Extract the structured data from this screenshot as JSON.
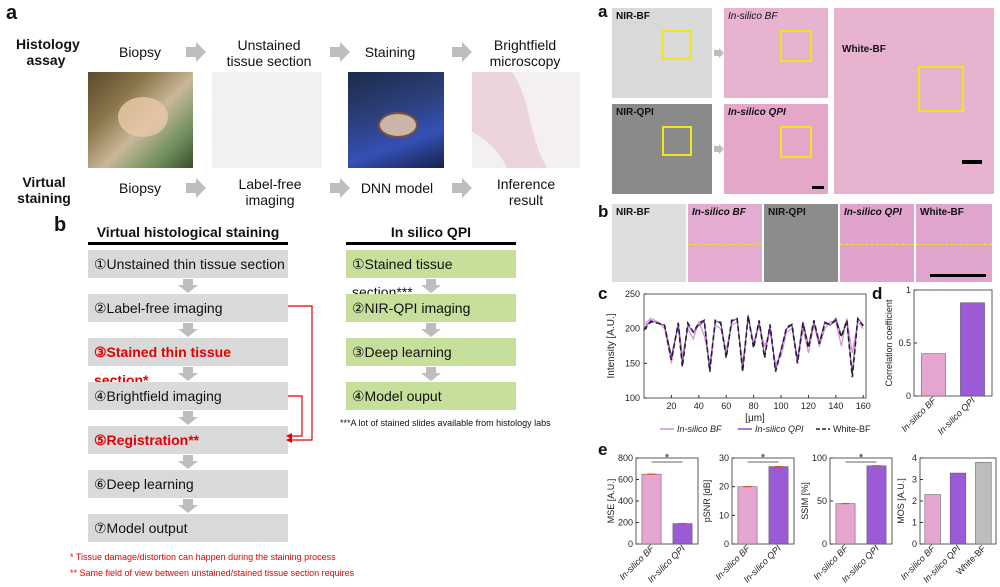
{
  "panel_a_left": {
    "label": "a",
    "histology_assay": "Histology\nassay",
    "virtual_staining": "Virtual\nstaining",
    "top_row": [
      "Biopsy",
      "Unstained\ntissue section",
      "Staining",
      "Brightfield\nmicroscopy"
    ],
    "bottom_row": [
      "Biopsy",
      "Label-free\nimaging",
      "DNN model",
      "Inference\nresult"
    ]
  },
  "panel_b_left": {
    "label": "b",
    "col1_title": "Virtual histological staining",
    "col2_title": "In silico QPI",
    "col1_steps": [
      {
        "num": "①",
        "text": "Unstained thin tissue section"
      },
      {
        "num": "②",
        "text": "Label-free imaging"
      },
      {
        "num": "③",
        "text": "Stained thin tissue section*"
      },
      {
        "num": "④",
        "text": "Brightfield imaging"
      },
      {
        "num": "⑤",
        "text": "Registration**"
      },
      {
        "num": "⑥",
        "text": "Deep learning"
      },
      {
        "num": "⑦",
        "text": "Model output"
      }
    ],
    "col2_steps": [
      {
        "num": "①",
        "text": "Stained tissue section***"
      },
      {
        "num": "②",
        "text": "NIR-QPI imaging"
      },
      {
        "num": "③",
        "text": "Deep learning"
      },
      {
        "num": "④",
        "text": "Model ouput"
      }
    ],
    "col2_note": "***A lot of stained slides available from histology labs",
    "footnote1": "* Tissue damage/distortion can happen during the staining process",
    "footnote2": "** Same field of view between unstained/stained tissue section requires"
  },
  "panel_a_right": {
    "label": "a",
    "tiles": [
      "NIR-BF",
      "In-silico BF",
      "NIR-QPI",
      "In-silico QPI",
      "White-BF"
    ]
  },
  "panel_b_right": {
    "label": "b",
    "tiles": [
      "NIR-BF",
      "In-silico BF",
      "NIR-QPI",
      "In-silico QPI",
      "White-BF"
    ]
  },
  "panel_c": {
    "label": "c"
  },
  "panel_d": {
    "label": "d"
  },
  "panel_e": {
    "label": "e"
  },
  "chart_data": [
    {
      "type": "line",
      "panel": "c",
      "xlabel": "[μm]",
      "ylabel": "Intensity [A.U.]",
      "xlim": [
        0,
        162
      ],
      "ylim": [
        100,
        250
      ],
      "xticks": [
        20,
        40,
        60,
        80,
        100,
        120,
        140,
        160
      ],
      "yticks": [
        100,
        150,
        200,
        250
      ],
      "legend": [
        "In-silico BF",
        "In-silico QPI",
        "White-BF"
      ],
      "colors": {
        "In-silico BF": "#d98fc9",
        "In-silico QPI": "#8a4bd6",
        "White-BF": "#222222"
      },
      "x": [
        0,
        5,
        10,
        15,
        20,
        25,
        28,
        32,
        36,
        40,
        44,
        48,
        52,
        56,
        60,
        64,
        68,
        72,
        76,
        80,
        84,
        88,
        92,
        96,
        100,
        104,
        108,
        112,
        116,
        120,
        124,
        128,
        132,
        136,
        140,
        144,
        148,
        152,
        156,
        160
      ],
      "series": [
        {
          "name": "In-silico BF",
          "values": [
            205,
            215,
            210,
            200,
            150,
            210,
            160,
            200,
            185,
            210,
            190,
            150,
            205,
            200,
            170,
            205,
            210,
            150,
            215,
            180,
            205,
            175,
            195,
            150,
            160,
            195,
            200,
            150,
            200,
            165,
            205,
            175,
            200,
            210,
            210,
            175,
            215,
            165,
            210,
            200
          ]
        },
        {
          "name": "In-silico QPI",
          "values": [
            200,
            212,
            208,
            205,
            160,
            205,
            150,
            205,
            195,
            205,
            210,
            140,
            210,
            210,
            160,
            210,
            215,
            140,
            220,
            175,
            210,
            160,
            205,
            140,
            170,
            200,
            205,
            155,
            210,
            175,
            210,
            180,
            210,
            205,
            215,
            190,
            210,
            135,
            215,
            205
          ]
        },
        {
          "name": "White-BF",
          "values": [
            198,
            210,
            208,
            205,
            155,
            208,
            145,
            208,
            195,
            208,
            212,
            138,
            212,
            208,
            158,
            212,
            214,
            138,
            218,
            172,
            212,
            158,
            206,
            138,
            168,
            202,
            206,
            150,
            208,
            172,
            212,
            178,
            208,
            206,
            212,
            188,
            212,
            130,
            214,
            204
          ]
        }
      ]
    },
    {
      "type": "bar",
      "panel": "d",
      "ylabel": "Correlation coefficient",
      "categories": [
        "In-silico BF",
        "In-silico QPI"
      ],
      "values": [
        0.4,
        0.88
      ],
      "ylim": [
        0,
        1
      ],
      "yticks": [
        0,
        0.5,
        1
      ],
      "colors": [
        "#e4a6cf",
        "#9b5ad6"
      ]
    },
    {
      "type": "bar",
      "panel": "e1",
      "ylabel": "MSE [A.U.]",
      "categories": [
        "In-silico BF",
        "In-silico QPI"
      ],
      "values": [
        650,
        190
      ],
      "ylim": [
        0,
        800
      ],
      "yticks": [
        0,
        200,
        400,
        600,
        800
      ],
      "significance": "*"
    },
    {
      "type": "bar",
      "panel": "e2",
      "ylabel": "pSNR [dB]",
      "categories": [
        "In-silico BF",
        "In-silico QPI"
      ],
      "values": [
        20,
        27
      ],
      "ylim": [
        0,
        30
      ],
      "yticks": [
        0,
        10,
        20,
        30
      ],
      "significance": "*"
    },
    {
      "type": "bar",
      "panel": "e3",
      "ylabel": "SSIM [%]",
      "categories": [
        "In-silico BF",
        "In-silico QPI"
      ],
      "values": [
        47,
        91
      ],
      "ylim": [
        0,
        100
      ],
      "yticks": [
        0,
        50,
        100
      ],
      "significance": "*"
    },
    {
      "type": "bar",
      "panel": "e4",
      "ylabel": "MOS [A.U.]",
      "categories": [
        "In-silico BF",
        "In-silico QPI",
        "White-BF"
      ],
      "values": [
        2.3,
        3.3,
        3.8
      ],
      "ylim": [
        0,
        4
      ],
      "yticks": [
        0,
        1,
        2,
        3,
        4
      ],
      "colors": [
        "#e4a6cf",
        "#9b5ad6",
        "#bdbdbd"
      ]
    }
  ]
}
